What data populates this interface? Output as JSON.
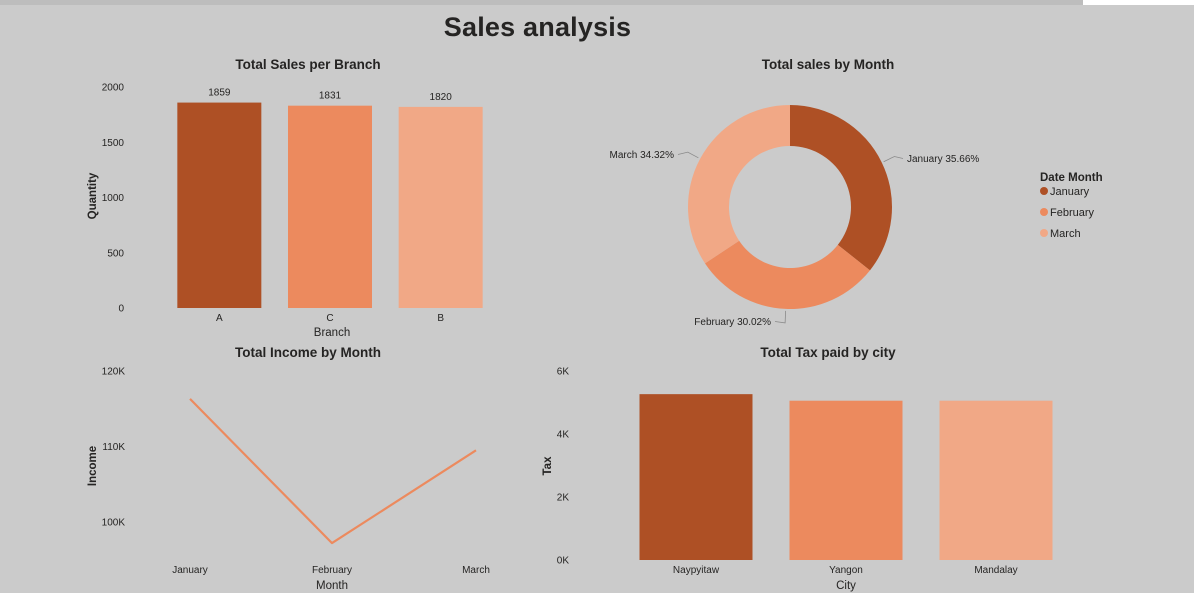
{
  "page": {
    "title": "Sales analysis"
  },
  "colors": {
    "dark": "#AE5025",
    "mid": "#EC8A5E",
    "light": "#F1A886",
    "line": "#EC8A5E",
    "leader": "#8a8a8a"
  },
  "chart_data": [
    {
      "id": "sales_branch",
      "type": "bar",
      "title": "Total Sales per Branch",
      "xlabel": "Branch",
      "ylabel": "Quantity",
      "categories": [
        "A",
        "C",
        "B"
      ],
      "values": [
        1859,
        1831,
        1820
      ],
      "data_labels": [
        "1859",
        "1831",
        "1820"
      ],
      "ylim": [
        0,
        2000
      ],
      "yticks": [
        {
          "value": 0,
          "label": "0"
        },
        {
          "value": 500,
          "label": "500"
        },
        {
          "value": 1000,
          "label": "1000"
        },
        {
          "value": 1500,
          "label": "1500"
        },
        {
          "value": 2000,
          "label": "2000"
        }
      ],
      "grid": false
    },
    {
      "id": "sales_month",
      "type": "pie",
      "donut": true,
      "title": "Total sales by Month",
      "legend_title": "Date Month",
      "legend_position": "right",
      "slices": [
        {
          "label": "January",
          "value": 35.66,
          "data_label": "January 35.66%"
        },
        {
          "label": "February",
          "value": 30.02,
          "data_label": "February 30.02%"
        },
        {
          "label": "March",
          "value": 34.32,
          "data_label": "March 34.32%"
        }
      ]
    },
    {
      "id": "income_month",
      "type": "line",
      "title": "Total Income by Month",
      "xlabel": "Month",
      "ylabel": "Income",
      "categories": [
        "January",
        "February",
        "March"
      ],
      "values": [
        116300,
        97200,
        109500
      ],
      "ylim": [
        95000,
        120000
      ],
      "yticks": [
        {
          "value": 100000,
          "label": "100K"
        },
        {
          "value": 110000,
          "label": "110K"
        },
        {
          "value": 120000,
          "label": "120K"
        }
      ],
      "grid": false
    },
    {
      "id": "tax_city",
      "type": "bar",
      "title": "Total Tax paid by city",
      "xlabel": "City",
      "ylabel": "Tax",
      "categories": [
        "Naypyitaw",
        "Yangon",
        "Mandalay"
      ],
      "values": [
        5265,
        5057,
        5057
      ],
      "ylim": [
        0,
        6000
      ],
      "yticks": [
        {
          "value": 0,
          "label": "0K"
        },
        {
          "value": 2000,
          "label": "2K"
        },
        {
          "value": 4000,
          "label": "4K"
        },
        {
          "value": 6000,
          "label": "6K"
        }
      ],
      "grid": false
    }
  ]
}
